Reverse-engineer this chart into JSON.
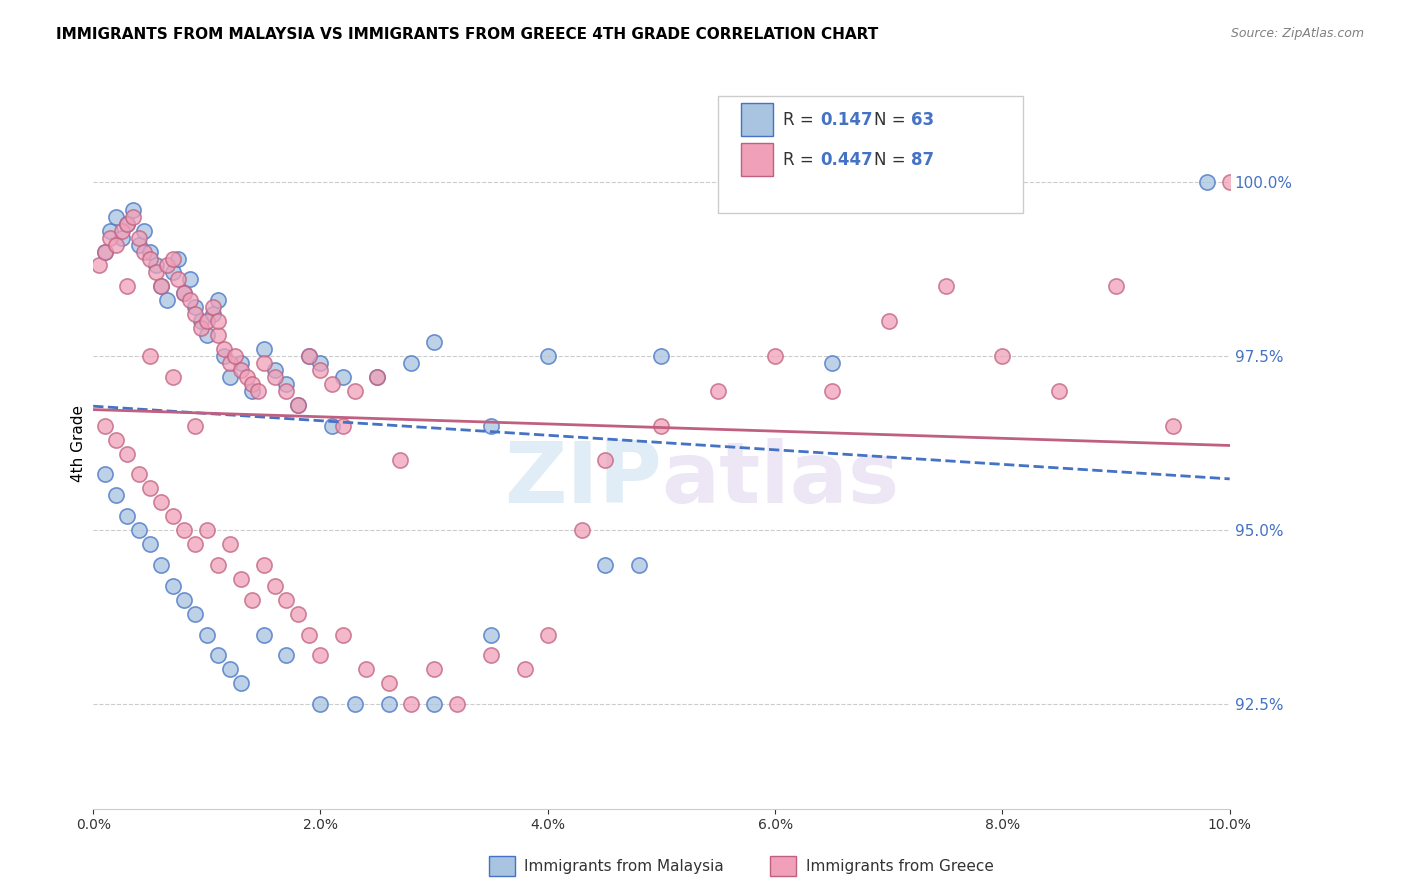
{
  "title": "IMMIGRANTS FROM MALAYSIA VS IMMIGRANTS FROM GREECE 4TH GRADE CORRELATION CHART",
  "source": "Source: ZipAtlas.com",
  "ylabel": "4th Grade",
  "legend_label_blue": "Immigrants from Malaysia",
  "legend_label_pink": "Immigrants from Greece",
  "R_blue": 0.147,
  "N_blue": 63,
  "R_pink": 0.447,
  "N_pink": 87,
  "color_blue": "#a8c4e0",
  "color_pink": "#f0a0b8",
  "line_color_blue": "#4472c4",
  "line_color_pink": "#c06080",
  "xlim": [
    0.0,
    10.0
  ],
  "ylim": [
    91.0,
    101.5
  ],
  "x_ticks": [
    0.0,
    2.0,
    4.0,
    6.0,
    8.0,
    10.0
  ],
  "y_ticks_right": [
    92.5,
    95.0,
    97.5,
    100.0
  ],
  "background_color": "#ffffff",
  "watermark_zip": "ZIP",
  "watermark_atlas": "atlas",
  "malaysia_x": [
    0.1,
    0.15,
    0.2,
    0.25,
    0.3,
    0.35,
    0.4,
    0.45,
    0.5,
    0.55,
    0.6,
    0.65,
    0.7,
    0.75,
    0.8,
    0.85,
    0.9,
    0.95,
    1.0,
    1.05,
    1.1,
    1.15,
    1.2,
    1.3,
    1.4,
    1.5,
    1.6,
    1.7,
    1.8,
    1.9,
    2.0,
    2.1,
    2.2,
    2.5,
    2.8,
    3.0,
    3.5,
    4.0,
    5.0,
    6.5,
    0.1,
    0.2,
    0.3,
    0.4,
    0.5,
    0.6,
    0.7,
    0.8,
    0.9,
    1.0,
    1.1,
    1.2,
    1.3,
    1.5,
    1.7,
    2.0,
    2.3,
    2.6,
    3.0,
    3.5,
    4.5,
    4.8,
    9.8
  ],
  "malaysia_y": [
    99.0,
    99.3,
    99.5,
    99.2,
    99.4,
    99.6,
    99.1,
    99.3,
    99.0,
    98.8,
    98.5,
    98.3,
    98.7,
    98.9,
    98.4,
    98.6,
    98.2,
    98.0,
    97.8,
    98.1,
    98.3,
    97.5,
    97.2,
    97.4,
    97.0,
    97.6,
    97.3,
    97.1,
    96.8,
    97.5,
    97.4,
    96.5,
    97.2,
    97.2,
    97.4,
    97.7,
    96.5,
    97.5,
    97.5,
    97.4,
    95.8,
    95.5,
    95.2,
    95.0,
    94.8,
    94.5,
    94.2,
    94.0,
    93.8,
    93.5,
    93.2,
    93.0,
    92.8,
    93.5,
    93.2,
    92.5,
    92.5,
    92.5,
    92.5,
    93.5,
    94.5,
    94.5,
    100.0
  ],
  "greece_x": [
    0.05,
    0.1,
    0.15,
    0.2,
    0.25,
    0.3,
    0.35,
    0.4,
    0.45,
    0.5,
    0.55,
    0.6,
    0.65,
    0.7,
    0.75,
    0.8,
    0.85,
    0.9,
    0.95,
    1.0,
    1.05,
    1.1,
    1.15,
    1.2,
    1.25,
    1.3,
    1.35,
    1.4,
    1.45,
    1.5,
    1.6,
    1.7,
    1.8,
    1.9,
    2.0,
    2.1,
    2.2,
    2.3,
    2.5,
    2.7,
    0.1,
    0.2,
    0.3,
    0.4,
    0.5,
    0.6,
    0.7,
    0.8,
    0.9,
    1.0,
    1.1,
    1.2,
    1.3,
    1.4,
    1.5,
    1.6,
    1.7,
    1.8,
    1.9,
    2.0,
    2.2,
    2.4,
    2.6,
    2.8,
    3.0,
    3.2,
    3.5,
    3.8,
    4.0,
    4.3,
    4.5,
    5.0,
    5.5,
    6.0,
    6.5,
    7.0,
    7.5,
    8.0,
    8.5,
    9.0,
    9.5,
    10.0,
    0.3,
    0.5,
    0.7,
    0.9,
    1.1
  ],
  "greece_y": [
    98.8,
    99.0,
    99.2,
    99.1,
    99.3,
    99.4,
    99.5,
    99.2,
    99.0,
    98.9,
    98.7,
    98.5,
    98.8,
    98.9,
    98.6,
    98.4,
    98.3,
    98.1,
    97.9,
    98.0,
    98.2,
    97.8,
    97.6,
    97.4,
    97.5,
    97.3,
    97.2,
    97.1,
    97.0,
    97.4,
    97.2,
    97.0,
    96.8,
    97.5,
    97.3,
    97.1,
    96.5,
    97.0,
    97.2,
    96.0,
    96.5,
    96.3,
    96.1,
    95.8,
    95.6,
    95.4,
    95.2,
    95.0,
    94.8,
    95.0,
    94.5,
    94.8,
    94.3,
    94.0,
    94.5,
    94.2,
    94.0,
    93.8,
    93.5,
    93.2,
    93.5,
    93.0,
    92.8,
    92.5,
    93.0,
    92.5,
    93.2,
    93.0,
    93.5,
    95.0,
    96.0,
    96.5,
    97.0,
    97.5,
    97.0,
    98.0,
    98.5,
    97.5,
    97.0,
    98.5,
    96.5,
    100.0,
    98.5,
    97.5,
    97.2,
    96.5,
    98.0
  ]
}
